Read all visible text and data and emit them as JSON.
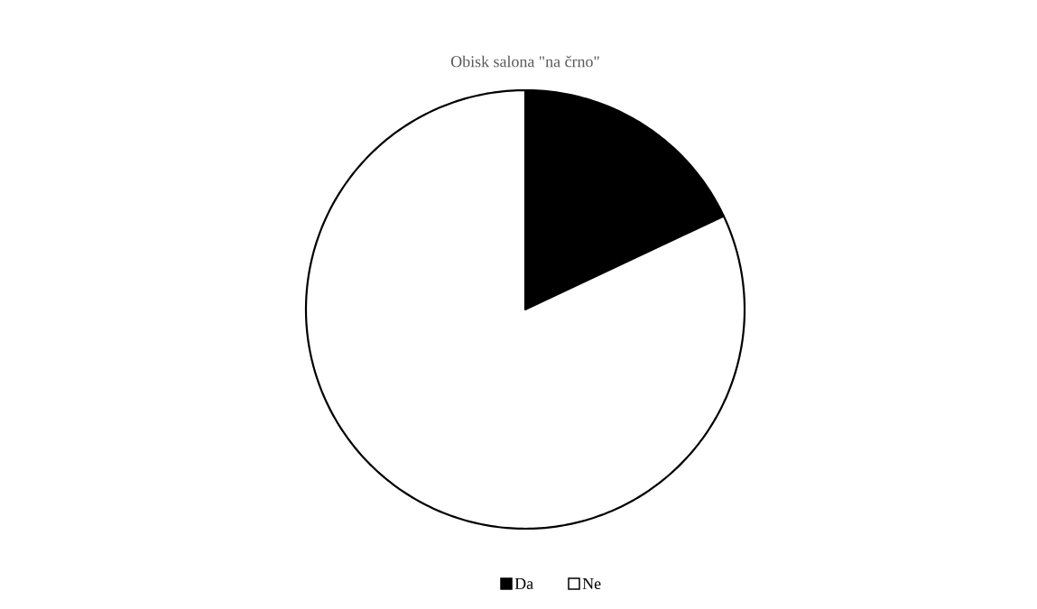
{
  "chart_data": {
    "type": "pie",
    "title": "Obisk salona \"na črno\"",
    "categories": [
      "Da",
      "Ne"
    ],
    "values": [
      18,
      82
    ],
    "colors": [
      "#000000",
      "#ffffff"
    ],
    "legend": "bottom"
  }
}
